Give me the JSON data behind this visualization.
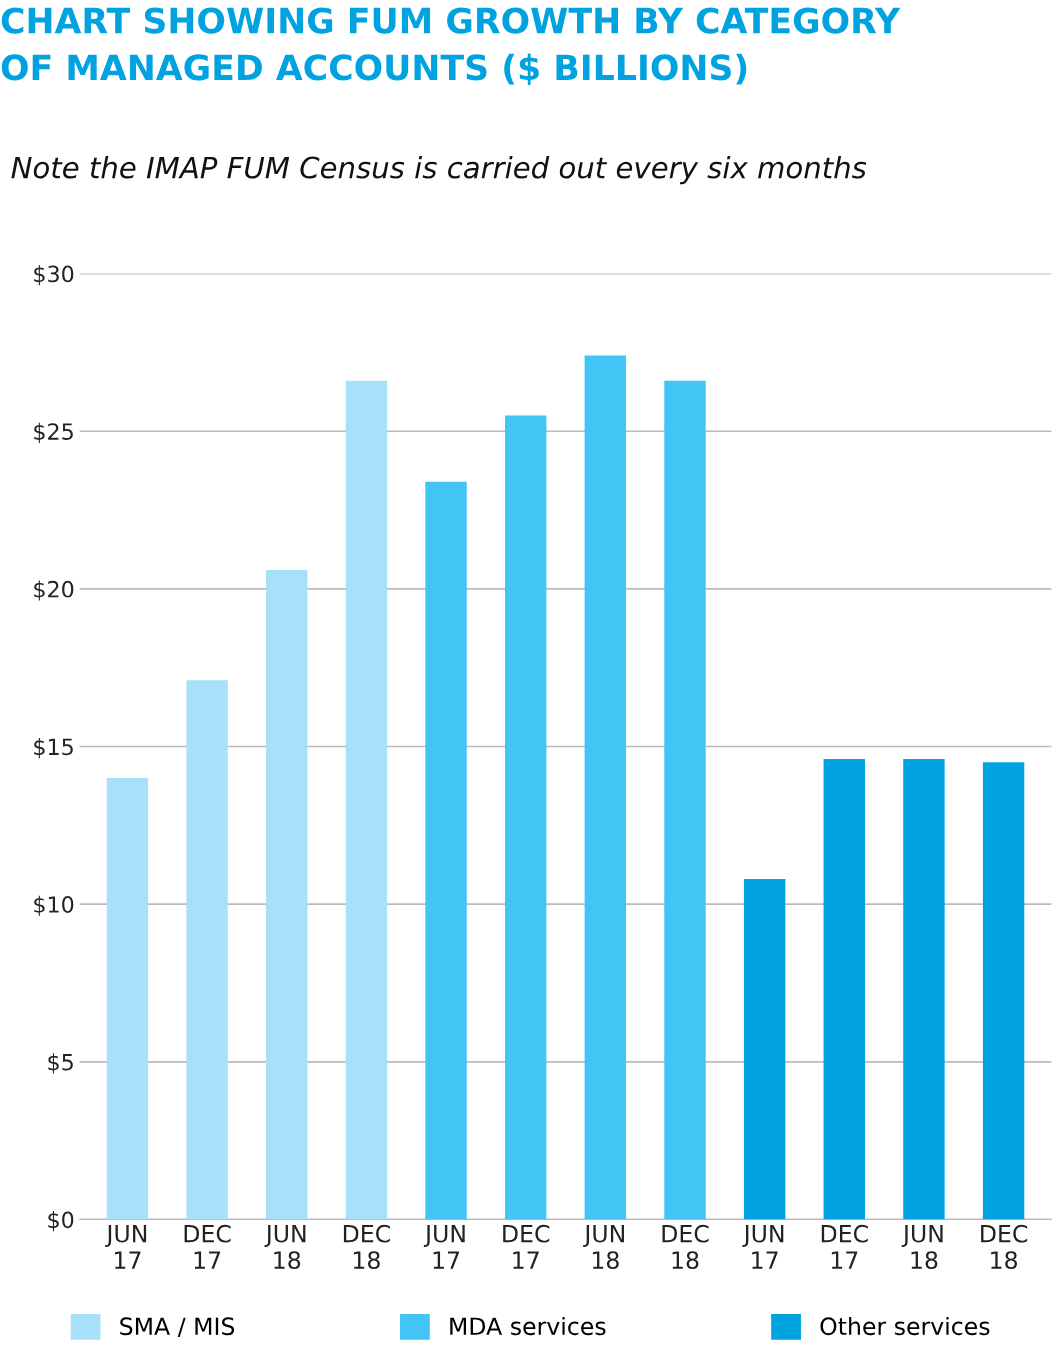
{
  "chart_data": {
    "type": "bar",
    "title": "CHART SHOWING FUM GROWTH BY CATEGORY\nOF MANAGED ACCOUNTS ($ BILLIONS)",
    "subtitle": "Note the IMAP FUM Census is carried out every six months",
    "categories": [
      "JUN\n17",
      "DEC\n17",
      "JUN\n18",
      "DEC\n18",
      "JUN\n17",
      "DEC\n17",
      "JUN\n18",
      "DEC\n18",
      "JUN\n17",
      "DEC\n17",
      "JUN\n18",
      "DEC\n18"
    ],
    "series": [
      {
        "name": "SMA / MIS",
        "color": "#a9e0f9",
        "values": [
          14.0,
          17.1,
          20.6,
          26.6,
          null,
          null,
          null,
          null,
          null,
          null,
          null,
          null
        ]
      },
      {
        "name": "MDA services",
        "color": "#42c5f4",
        "values": [
          null,
          null,
          null,
          null,
          23.4,
          25.5,
          27.4,
          26.6,
          null,
          null,
          null,
          null
        ]
      },
      {
        "name": "Other services",
        "color": "#00a3e0",
        "values": [
          null,
          null,
          null,
          null,
          null,
          null,
          null,
          null,
          10.8,
          14.6,
          14.6,
          14.5
        ]
      }
    ],
    "ylim": [
      0,
      30
    ],
    "yticks": [
      {
        "value": 0,
        "label": "$0"
      },
      {
        "value": 5,
        "label": "$5"
      },
      {
        "value": 10,
        "label": "$10"
      },
      {
        "value": 15,
        "label": "$15"
      },
      {
        "value": 20,
        "label": "$20"
      },
      {
        "value": 25,
        "label": "$25"
      },
      {
        "value": 30,
        "label": "$30"
      }
    ],
    "grid": "y",
    "legend": "bottom"
  }
}
